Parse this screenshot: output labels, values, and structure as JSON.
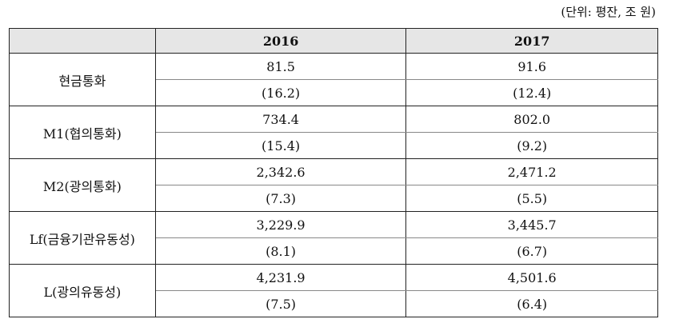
{
  "unit_label": "(단위: 평잔, 조 원)",
  "header": {
    "col1": "2016",
    "col2": "2017"
  },
  "rows": [
    {
      "label": "현금통화",
      "v2016": "81.5",
      "v2017": "91.6",
      "g2016": "(16.2)",
      "g2017": "(12.4)"
    },
    {
      "label": "M1(협의통화)",
      "v2016": "734.4",
      "v2017": "802.0",
      "g2016": "(15.4)",
      "g2017": "(9.2)"
    },
    {
      "label": "M2(광의통화)",
      "v2016": "2,342.6",
      "v2017": "2,471.2",
      "g2016": "(7.3)",
      "g2017": "(5.5)"
    },
    {
      "label": "Lf(금융기관유동성)",
      "v2016": "3,229.9",
      "v2017": "3,445.7",
      "g2016": "(8.1)",
      "g2017": "(6.7)"
    },
    {
      "label": "L(광의유동성)",
      "v2016": "4,231.9",
      "v2017": "4,501.6",
      "g2016": "(7.5)",
      "g2017": "(6.4)"
    }
  ]
}
